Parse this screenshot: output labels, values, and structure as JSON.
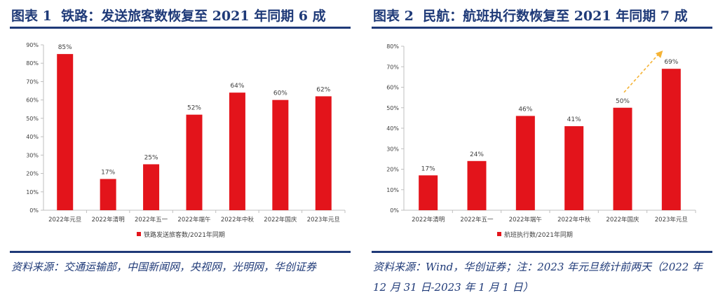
{
  "colors": {
    "bar": "#e3141b",
    "title": "#1f3a78",
    "axis": "#bfbfbf",
    "arrow": "#f5b335"
  },
  "chart_data": [
    {
      "type": "bar",
      "figure_label": "图表 1",
      "title": "铁路：发送旅客数恢复至 2021 年同期 6 成",
      "categories": [
        "2022年元旦",
        "2022年清明",
        "2022年五一",
        "2022年端午",
        "2022年中秋",
        "2022年国庆",
        "2023年元旦"
      ],
      "series": [
        {
          "name": "铁路发送旅客数/2021年同期",
          "values": [
            85,
            17,
            25,
            52,
            64,
            60,
            62
          ]
        }
      ],
      "data_labels": [
        "85%",
        "17%",
        "25%",
        "52%",
        "64%",
        "60%",
        "62%"
      ],
      "yticks": [
        "0%",
        "10%",
        "20%",
        "30%",
        "40%",
        "50%",
        "60%",
        "70%",
        "80%",
        "90%"
      ],
      "ylim": [
        0,
        90
      ],
      "legend_position": "bottom",
      "source": "资料来源：交通运输部，中国新闻网，央视网，光明网，华创证券"
    },
    {
      "type": "bar",
      "figure_label": "图表 2",
      "title": "民航：航班执行数恢复至 2021 年同期 7 成",
      "categories": [
        "2022年清明",
        "2022年五一",
        "2022年端午",
        "2022年中秋",
        "2022年国庆",
        "2023年元旦"
      ],
      "series": [
        {
          "name": "航班执行数/2021年同期",
          "values": [
            17,
            24,
            46,
            41,
            50,
            69
          ]
        }
      ],
      "data_labels": [
        "17%",
        "24%",
        "46%",
        "41%",
        "50%",
        "69%"
      ],
      "yticks": [
        "0%",
        "10%",
        "20%",
        "30%",
        "40%",
        "50%",
        "60%",
        "70%",
        "80%"
      ],
      "ylim": [
        0,
        80
      ],
      "legend_position": "bottom",
      "annotation": "dashed arrow pointing up from 2022年国庆 to 2023年元旦",
      "source": "资料来源：Wind，华创证券；注：2023 年元旦统计前两天（2022 年 12 月 31 日-2023 年 1 月 1 日）"
    }
  ]
}
